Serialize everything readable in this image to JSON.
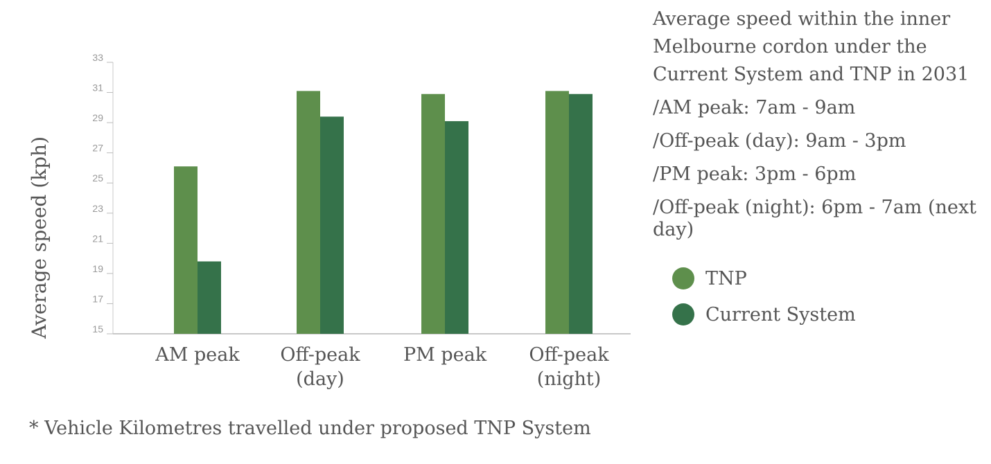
{
  "chart_data": {
    "type": "bar",
    "title": "Average speed within the inner Melbourne cordon under the Current System and TNP in 2031",
    "categories": [
      [
        "AM peak"
      ],
      [
        "Off-peak",
        "(day)"
      ],
      [
        "PM peak"
      ],
      [
        "Off-peak",
        "(night)"
      ]
    ],
    "series": [
      {
        "name": "TNP",
        "color": "#5e8f4c",
        "values": [
          26.1,
          31.1,
          30.9,
          31.1
        ]
      },
      {
        "name": "Current System",
        "color": "#35724a",
        "values": [
          19.8,
          29.4,
          29.1,
          30.9
        ]
      }
    ],
    "ylabel": "Average speed (kph)",
    "xlabel": "",
    "ylim": [
      15,
      33
    ],
    "yticks": [
      15,
      17,
      19,
      21,
      23,
      25,
      27,
      29,
      31,
      33
    ],
    "grid": false,
    "legend_position": "right"
  },
  "sidebar": {
    "title": "Average speed within the inner Melbourne cordon under the Current System and TNP in 2031",
    "definitions": [
      "/AM peak: 7am - 9am",
      "/Off-peak (day): 9am - 3pm",
      "/PM peak: 3pm - 6pm",
      "/Off-peak (night): 6pm - 7am (next day)"
    ]
  },
  "footnote": "* Vehicle Kilometres travelled under proposed TNP System"
}
